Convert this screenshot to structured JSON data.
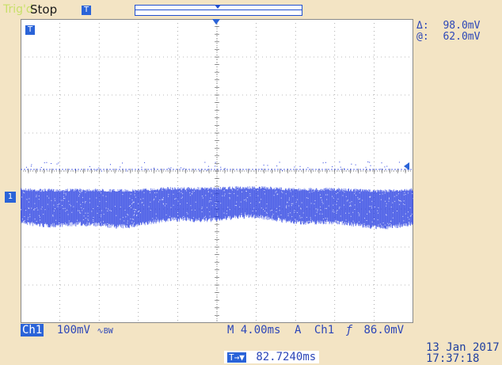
{
  "status": {
    "trigger_state": "Trig'd",
    "acquisition": "Stop"
  },
  "markers": {
    "trigger_marker": "T",
    "channel_marker": "1",
    "window_pointer": "T"
  },
  "measurements": {
    "delta_label": "Δ:",
    "delta_value": "98.0mV",
    "at_label": "@:",
    "at_value": "62.0mV"
  },
  "channel": {
    "name": "Ch1",
    "scale": "100mV",
    "coupling_icon": "∿BW"
  },
  "timebase": {
    "value": "M 4.00ms"
  },
  "trigger": {
    "mode": "A",
    "source": "Ch1",
    "slope_icon": "rising-edge",
    "slope_glyph": "ƒ",
    "level": "86.0mV"
  },
  "position": {
    "icon": "T→▼",
    "value": "82.7240ms"
  },
  "datetime": {
    "date": "13 Jan  2017",
    "time": "17:37:18"
  },
  "colors": {
    "background": "#f3e4c4",
    "grid": "#2a2a2a",
    "trace": "#2038e0",
    "accent": "#2a63d8"
  }
}
